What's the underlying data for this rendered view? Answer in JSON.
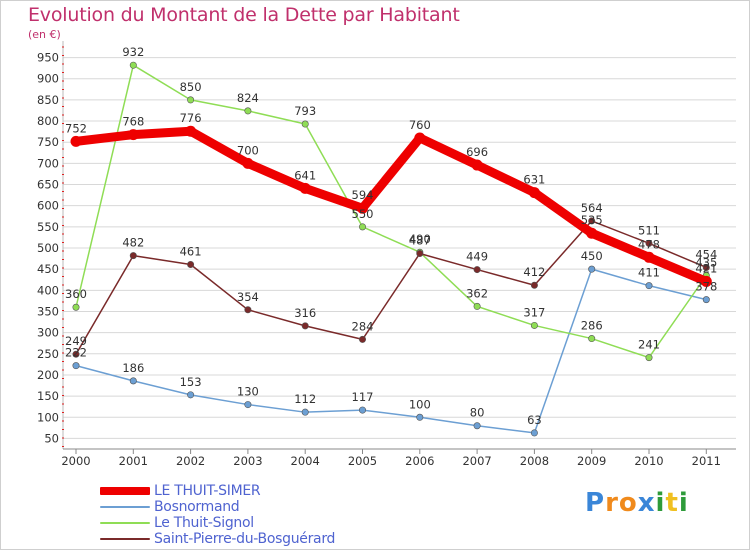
{
  "title": "Evolution du Montant de la Dette par Habitant",
  "unit": "(en €)",
  "logo": "Proxiti",
  "colors": {
    "title": "#c0306c",
    "legend_text": "#4f63d0",
    "grid": "#d8d8d8"
  },
  "chart_data": {
    "type": "line",
    "x": [
      "2000",
      "2001",
      "2002",
      "2003",
      "2004",
      "2005",
      "2006",
      "2007",
      "2008",
      "2009",
      "2010",
      "2011"
    ],
    "yticks": [
      50,
      100,
      150,
      200,
      250,
      300,
      350,
      400,
      450,
      500,
      550,
      600,
      650,
      700,
      750,
      800,
      850,
      900,
      950
    ],
    "ylim": [
      25,
      975
    ],
    "grid": true,
    "legend_position": "bottom-left",
    "series": [
      {
        "name": "LE THUIT-SIMER",
        "color": "#ee0000",
        "values": [
          752,
          768,
          776,
          700,
          641,
          594,
          760,
          696,
          631,
          535,
          478,
          421
        ],
        "labels": [
          "752",
          "768",
          "776",
          "700",
          "641",
          "594",
          "760",
          "696",
          "631",
          "535",
          "478",
          "421"
        ]
      },
      {
        "name": "Bosnormand",
        "color": "#6c9fd3",
        "values": [
          222,
          186,
          153,
          130,
          112,
          117,
          100,
          80,
          63,
          450,
          411,
          378
        ],
        "labels": [
          "222",
          "186",
          "153",
          "130",
          "112",
          "117",
          "100",
          "80",
          "63",
          "450",
          "411",
          "378"
        ]
      },
      {
        "name": "Le Thuit-Signol",
        "color": "#8fdd55",
        "values": [
          360,
          932,
          850,
          824,
          793,
          550,
          490,
          362,
          317,
          286,
          241,
          435
        ],
        "labels": [
          "360",
          "932",
          "850",
          "824",
          "793",
          "550",
          "490",
          "362",
          "317",
          "286",
          "241",
          "435"
        ]
      },
      {
        "name": "Saint-Pierre-du-Bosguérard",
        "color": "#7a2a2a",
        "values": [
          249,
          482,
          461,
          354,
          316,
          284,
          487,
          449,
          412,
          564,
          511,
          454
        ],
        "labels": [
          "249",
          "482",
          "461",
          "354",
          "316",
          "284",
          "487",
          "449",
          "412",
          "564",
          "511",
          "454"
        ]
      }
    ]
  }
}
